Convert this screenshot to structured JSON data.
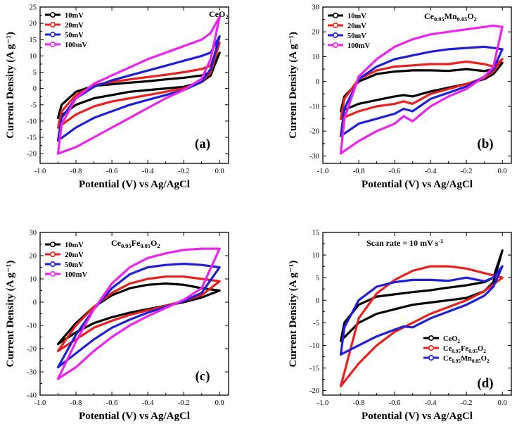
{
  "chart_data": [
    {
      "type": "line",
      "panel_label": "(a)",
      "title": "CeO2",
      "title_parts": [
        [
          "CeO",
          ""
        ],
        [
          "2",
          "sub"
        ]
      ],
      "xlabel": "Potential (V) vs Ag/AgCl",
      "ylabel": "Current Density (A g⁻¹)",
      "xlim": [
        -1.0,
        0.05
      ],
      "ylim": [
        -23,
        25
      ],
      "xticks": [
        -1.0,
        -0.8,
        -0.6,
        -0.4,
        -0.2,
        0.0
      ],
      "xtick_labels": [
        "-1.0",
        "-0.8",
        "-0.6",
        "-0.4",
        "-0.2",
        "0.0"
      ],
      "yticks": [
        -20,
        -15,
        -10,
        -5,
        0,
        5,
        10,
        15,
        20,
        25
      ],
      "ytick_labels": [
        "-20",
        "-15",
        "-10",
        "-5",
        "0",
        "5",
        "10",
        "15",
        "20",
        "25"
      ],
      "legend_position": "top-left",
      "series": [
        {
          "name": "10mV",
          "color": "#000000",
          "x": [
            -0.9,
            -0.8,
            -0.7,
            -0.6,
            -0.5,
            -0.4,
            -0.3,
            -0.2,
            -0.1,
            -0.05,
            0.0,
            0.0,
            -0.05,
            -0.1,
            -0.2,
            -0.3,
            -0.4,
            -0.5,
            -0.6,
            -0.7,
            -0.8,
            -0.88,
            -0.9
          ],
          "y": [
            -9,
            -5,
            -3,
            -2,
            -1,
            -0.5,
            0,
            0.5,
            2,
            4,
            11,
            11,
            5,
            4,
            3.3,
            2.8,
            2.2,
            1.8,
            1.3,
            0.8,
            -1,
            -5,
            -9
          ]
        },
        {
          "name": "20mV",
          "color": "#e8201e",
          "x": [
            -0.9,
            -0.8,
            -0.7,
            -0.6,
            -0.5,
            -0.4,
            -0.3,
            -0.2,
            -0.1,
            -0.05,
            0.0,
            0.0,
            -0.05,
            -0.1,
            -0.2,
            -0.3,
            -0.4,
            -0.5,
            -0.6,
            -0.7,
            -0.8,
            -0.88,
            -0.9
          ],
          "y": [
            -12,
            -8,
            -5.5,
            -4,
            -3,
            -2,
            -1,
            0,
            2,
            5,
            14,
            14,
            7,
            6,
            5,
            4.2,
            3.5,
            2.8,
            2,
            1,
            -2,
            -7,
            -12
          ]
        },
        {
          "name": "50mV",
          "color": "#1f1fd6",
          "x": [
            -0.9,
            -0.8,
            -0.7,
            -0.6,
            -0.5,
            -0.4,
            -0.3,
            -0.2,
            -0.1,
            -0.05,
            0.0,
            0.0,
            -0.05,
            -0.1,
            -0.2,
            -0.3,
            -0.4,
            -0.5,
            -0.6,
            -0.7,
            -0.8,
            -0.88,
            -0.9
          ],
          "y": [
            -16,
            -12,
            -9,
            -7,
            -5,
            -3.5,
            -2,
            -0.5,
            2,
            6,
            16,
            16,
            11,
            10,
            8.5,
            7,
            5.5,
            4,
            2.5,
            0.5,
            -3,
            -9,
            -16
          ]
        },
        {
          "name": "100mV",
          "color": "#ee22ee",
          "x": [
            -0.9,
            -0.8,
            -0.7,
            -0.6,
            -0.5,
            -0.4,
            -0.3,
            -0.2,
            -0.1,
            -0.05,
            0.0,
            0.0,
            -0.05,
            -0.1,
            -0.2,
            -0.3,
            -0.4,
            -0.5,
            -0.6,
            -0.7,
            -0.8,
            -0.88,
            -0.9
          ],
          "y": [
            -20,
            -18,
            -15,
            -12,
            -9,
            -6,
            -3,
            -0.5,
            3,
            9,
            22,
            22,
            17,
            15,
            13,
            11,
            9,
            6.5,
            4,
            1.5,
            -3,
            -11,
            -20
          ]
        }
      ]
    },
    {
      "type": "line",
      "panel_label": "(b)",
      "title": "Ce0.95Mn0.05O2",
      "title_parts": [
        [
          "Ce",
          ""
        ],
        [
          "0.95",
          "sub"
        ],
        [
          "Mn",
          ""
        ],
        [
          "0.05",
          "sub"
        ],
        [
          "O",
          ""
        ],
        [
          "2",
          "sub"
        ]
      ],
      "xlabel": "Potential (V) vs Ag/AgCl",
      "ylabel": "Current Density (A g⁻¹)",
      "xlim": [
        -1.0,
        0.05
      ],
      "ylim": [
        -33,
        30
      ],
      "xticks": [
        -1.0,
        -0.8,
        -0.6,
        -0.4,
        -0.2,
        0.0
      ],
      "xtick_labels": [
        "-1.0",
        "-0.8",
        "-0.6",
        "-0.4",
        "-0.2",
        "0.0"
      ],
      "yticks": [
        -30,
        -20,
        -10,
        0,
        10,
        20,
        30
      ],
      "ytick_labels": [
        "-30",
        "-20",
        "-10",
        "0",
        "10",
        "20",
        "30"
      ],
      "legend_position": "top-left",
      "series": [
        {
          "name": "10mV",
          "color": "#000000",
          "x": [
            -0.9,
            -0.8,
            -0.7,
            -0.6,
            -0.55,
            -0.5,
            -0.4,
            -0.3,
            -0.2,
            -0.1,
            -0.05,
            0.0,
            0.0,
            -0.05,
            -0.1,
            -0.2,
            -0.3,
            -0.4,
            -0.5,
            -0.6,
            -0.7,
            -0.8,
            -0.88,
            -0.9
          ],
          "y": [
            -12,
            -9,
            -7.5,
            -6,
            -5.5,
            -6,
            -4,
            -2.5,
            -1,
            1,
            3,
            7.5,
            7.5,
            5,
            4.2,
            5,
            4.3,
            4.5,
            4.5,
            4,
            3,
            0,
            -6,
            -12
          ]
        },
        {
          "name": "20mV",
          "color": "#e8201e",
          "x": [
            -0.9,
            -0.8,
            -0.7,
            -0.6,
            -0.55,
            -0.5,
            -0.4,
            -0.3,
            -0.2,
            -0.1,
            -0.05,
            0.0,
            0.0,
            -0.05,
            -0.1,
            -0.2,
            -0.3,
            -0.4,
            -0.5,
            -0.6,
            -0.7,
            -0.8,
            -0.88,
            -0.9
          ],
          "y": [
            -15,
            -12,
            -10,
            -9,
            -8,
            -9,
            -5,
            -3,
            -1,
            1.5,
            4,
            9,
            9,
            6,
            7,
            8,
            7,
            7,
            6.5,
            6,
            4.5,
            1,
            -7,
            -15
          ]
        },
        {
          "name": "50mV",
          "color": "#1f1fd6",
          "x": [
            -0.9,
            -0.8,
            -0.7,
            -0.6,
            -0.55,
            -0.5,
            -0.4,
            -0.3,
            -0.2,
            -0.1,
            -0.05,
            0.0,
            0.0,
            -0.05,
            -0.1,
            -0.2,
            -0.3,
            -0.4,
            -0.5,
            -0.6,
            -0.7,
            -0.8,
            -0.88,
            -0.9
          ],
          "y": [
            -22,
            -17,
            -15,
            -13,
            -11,
            -12,
            -7,
            -4.5,
            -2,
            2,
            5,
            13,
            13,
            13.5,
            14,
            13.5,
            13,
            12,
            10.5,
            9,
            6,
            1,
            -11,
            -22
          ]
        },
        {
          "name": "100mV",
          "color": "#ee22ee",
          "x": [
            -0.9,
            -0.8,
            -0.7,
            -0.6,
            -0.55,
            -0.5,
            -0.4,
            -0.3,
            -0.2,
            -0.1,
            -0.05,
            0.0,
            0.0,
            -0.05,
            -0.1,
            -0.2,
            -0.3,
            -0.4,
            -0.5,
            -0.6,
            -0.7,
            -0.8,
            -0.88,
            -0.9
          ],
          "y": [
            -29,
            -24,
            -20,
            -17,
            -14,
            -16,
            -10,
            -6,
            -3,
            2,
            6,
            22,
            22,
            22.5,
            22,
            21,
            20,
            19,
            17,
            14,
            9,
            2,
            -15,
            -29
          ]
        }
      ]
    },
    {
      "type": "line",
      "panel_label": "(c)",
      "title": "Ce0.95Fe0.05O2",
      "title_parts": [
        [
          "Ce",
          ""
        ],
        [
          "0.95",
          "sub"
        ],
        [
          "Fe",
          ""
        ],
        [
          "0.05",
          "sub"
        ],
        [
          "O",
          ""
        ],
        [
          "2",
          "sub"
        ]
      ],
      "xlabel": "Potential (V) vs Ag/AgCl",
      "ylabel": "Current Density (A g⁻¹)",
      "xlim": [
        -1.0,
        0.05
      ],
      "ylim": [
        -40,
        30
      ],
      "xticks": [
        -1.0,
        -0.8,
        -0.6,
        -0.4,
        -0.2,
        0.0
      ],
      "xtick_labels": [
        "-1.0",
        "-0.8",
        "-0.6",
        "-0.4",
        "-0.2",
        "0.0"
      ],
      "yticks": [
        -40,
        -30,
        -20,
        -10,
        0,
        10,
        20,
        30
      ],
      "ytick_labels": [
        "-40",
        "-30",
        "-20",
        "-10",
        "0",
        "10",
        "20",
        "30"
      ],
      "legend_position": "top-left",
      "series": [
        {
          "name": "10mV",
          "color": "#000000",
          "x": [
            -0.9,
            -0.8,
            -0.7,
            -0.6,
            -0.5,
            -0.4,
            -0.3,
            -0.2,
            -0.1,
            0.0,
            0.0,
            -0.1,
            -0.2,
            -0.3,
            -0.4,
            -0.5,
            -0.6,
            -0.7,
            -0.8,
            -0.9
          ],
          "y": [
            -18,
            -13,
            -9,
            -6.5,
            -4.5,
            -3,
            -1.5,
            0,
            2,
            5,
            5,
            6,
            7.5,
            8,
            7.5,
            6,
            3,
            -2,
            -9,
            -18
          ]
        },
        {
          "name": "20mV",
          "color": "#e8201e",
          "x": [
            -0.9,
            -0.8,
            -0.7,
            -0.6,
            -0.5,
            -0.4,
            -0.3,
            -0.2,
            -0.1,
            0.0,
            0.0,
            -0.1,
            -0.2,
            -0.3,
            -0.4,
            -0.5,
            -0.6,
            -0.7,
            -0.8,
            -0.9
          ],
          "y": [
            -21,
            -16,
            -11,
            -8,
            -5.5,
            -3.5,
            -1.5,
            0.5,
            3,
            9,
            9,
            10,
            11,
            11,
            10,
            8,
            4,
            -2,
            -10,
            -21
          ]
        },
        {
          "name": "50mV",
          "color": "#1f1fd6",
          "x": [
            -0.9,
            -0.8,
            -0.7,
            -0.6,
            -0.5,
            -0.4,
            -0.3,
            -0.2,
            -0.1,
            0.0,
            0.0,
            -0.1,
            -0.2,
            -0.3,
            -0.4,
            -0.5,
            -0.6,
            -0.7,
            -0.8,
            -0.9
          ],
          "y": [
            -28,
            -22,
            -16,
            -11,
            -7.5,
            -4.5,
            -2,
            0.5,
            4,
            15,
            15,
            16,
            16.5,
            16,
            15,
            12,
            6,
            -3,
            -14,
            -28
          ]
        },
        {
          "name": "100mV",
          "color": "#ee22ee",
          "x": [
            -0.9,
            -0.8,
            -0.7,
            -0.6,
            -0.5,
            -0.4,
            -0.3,
            -0.2,
            -0.1,
            0.0,
            0.0,
            -0.1,
            -0.2,
            -0.3,
            -0.4,
            -0.5,
            -0.6,
            -0.7,
            -0.8,
            -0.9
          ],
          "y": [
            -33,
            -28,
            -21,
            -15,
            -10,
            -6,
            -2.5,
            1,
            6,
            23,
            23,
            23,
            22.5,
            21,
            19,
            15,
            8,
            -3,
            -17,
            -33
          ]
        }
      ]
    },
    {
      "type": "line",
      "panel_label": "(d)",
      "title": "Scan rate = 10 mV s-1",
      "title_parts": [
        [
          "Scan rate = 10 mV s",
          ""
        ],
        [
          "-1",
          "sup"
        ]
      ],
      "xlabel": "Potential (V) vs Ag/AgCl",
      "ylabel": "Current Density (A g⁻¹)",
      "xlim": [
        -1.0,
        0.05
      ],
      "ylim": [
        -21,
        15
      ],
      "xticks": [
        -1.0,
        -0.8,
        -0.6,
        -0.4,
        -0.2,
        0.0
      ],
      "xtick_labels": [
        "-1.0",
        "-0.8",
        "-0.6",
        "-0.4",
        "-0.2",
        "0.0"
      ],
      "yticks": [
        -20,
        -15,
        -10,
        -5,
        0,
        5,
        10,
        15
      ],
      "ytick_labels": [
        "-20",
        "-15",
        "-10",
        "-5",
        "0",
        "5",
        "10",
        "15"
      ],
      "legend_position": "bottom-right",
      "series": [
        {
          "name": "CeO2",
          "name_parts": [
            [
              "CeO",
              ""
            ],
            [
              "2",
              "sub"
            ]
          ],
          "color": "#000000",
          "x": [
            -0.9,
            -0.8,
            -0.7,
            -0.6,
            -0.5,
            -0.4,
            -0.3,
            -0.2,
            -0.1,
            -0.05,
            0.0,
            0.0,
            -0.05,
            -0.1,
            -0.2,
            -0.3,
            -0.4,
            -0.5,
            -0.6,
            -0.7,
            -0.8,
            -0.88,
            -0.9
          ],
          "y": [
            -9,
            -5,
            -3,
            -2,
            -1,
            -0.5,
            0,
            0.5,
            2,
            4,
            11,
            11,
            5,
            4,
            3.3,
            2.8,
            2.2,
            1.8,
            1.3,
            0.8,
            -1,
            -5,
            -9
          ]
        },
        {
          "name": "Ce0.95Fe0.05O2",
          "name_parts": [
            [
              "Ce",
              ""
            ],
            [
              "0.95",
              "sub"
            ],
            [
              "Fe",
              ""
            ],
            [
              "0.05",
              "sub"
            ],
            [
              "O",
              ""
            ],
            [
              "2",
              "sub"
            ]
          ],
          "color": "#e8201e",
          "x": [
            -0.9,
            -0.8,
            -0.7,
            -0.6,
            -0.5,
            -0.4,
            -0.3,
            -0.2,
            -0.1,
            0.0,
            0.0,
            -0.1,
            -0.2,
            -0.3,
            -0.4,
            -0.5,
            -0.6,
            -0.7,
            -0.8,
            -0.9
          ],
          "y": [
            -19,
            -14,
            -10,
            -7,
            -5,
            -3,
            -1.5,
            0,
            2,
            5,
            5,
            6,
            7,
            7.5,
            7.5,
            6.5,
            4.5,
            1.5,
            -4,
            -19
          ]
        },
        {
          "name": "Ce0.95Mn0.05O2",
          "name_parts": [
            [
              "Ce",
              ""
            ],
            [
              "0.95",
              "sub"
            ],
            [
              "Mn",
              ""
            ],
            [
              "0.05",
              "sub"
            ],
            [
              "O",
              ""
            ],
            [
              "2",
              "sub"
            ]
          ],
          "color": "#1f1fd6",
          "x": [
            -0.9,
            -0.8,
            -0.7,
            -0.6,
            -0.55,
            -0.5,
            -0.4,
            -0.3,
            -0.2,
            -0.1,
            -0.05,
            0.0,
            0.0,
            -0.05,
            -0.1,
            -0.2,
            -0.3,
            -0.4,
            -0.5,
            -0.6,
            -0.7,
            -0.8,
            -0.88,
            -0.9
          ],
          "y": [
            -12,
            -10,
            -8,
            -6.5,
            -5.8,
            -6,
            -4,
            -2.5,
            -1,
            1,
            3,
            7.5,
            7.5,
            5,
            4.2,
            5,
            4.3,
            4.5,
            4.5,
            4,
            3,
            0,
            -6,
            -12
          ]
        }
      ]
    }
  ]
}
